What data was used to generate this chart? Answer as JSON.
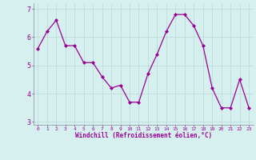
{
  "x": [
    0,
    1,
    2,
    3,
    4,
    5,
    6,
    7,
    8,
    9,
    10,
    11,
    12,
    13,
    14,
    15,
    16,
    17,
    18,
    19,
    20,
    21,
    22,
    23
  ],
  "y": [
    5.6,
    6.2,
    6.6,
    5.7,
    5.7,
    5.1,
    5.1,
    4.6,
    4.2,
    4.3,
    3.7,
    3.7,
    4.7,
    5.4,
    6.2,
    6.8,
    6.8,
    6.4,
    5.7,
    4.2,
    3.5,
    3.5,
    4.5,
    3.5
  ],
  "xlabel": "Windchill (Refroidissement éolien,°C)",
  "ylim": [
    2.9,
    7.2
  ],
  "xlim": [
    -0.5,
    23.5
  ],
  "xticks": [
    0,
    1,
    2,
    3,
    4,
    5,
    6,
    7,
    8,
    9,
    10,
    11,
    12,
    13,
    14,
    15,
    16,
    17,
    18,
    19,
    20,
    21,
    22,
    23
  ],
  "yticks": [
    3,
    4,
    5,
    6,
    7
  ],
  "line_color": "#990099",
  "marker_color": "#990099",
  "bg_color": "#d6f0f0",
  "grid_color": "#b8d8d8",
  "axis_label_color": "#990099",
  "tick_label_color": "#990099",
  "spine_color": "#888899"
}
